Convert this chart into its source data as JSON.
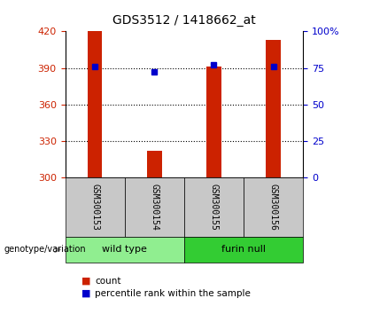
{
  "title": "GDS3512 / 1418662_at",
  "samples": [
    "GSM300153",
    "GSM300154",
    "GSM300155",
    "GSM300156"
  ],
  "groups": [
    {
      "name": "wild type",
      "indices": [
        0,
        1
      ]
    },
    {
      "name": "furin null",
      "indices": [
        2,
        3
      ]
    }
  ],
  "count_values": [
    420,
    322,
    391,
    413
  ],
  "percentile_values": [
    76,
    72,
    77,
    76
  ],
  "ymin": 300,
  "ymax": 420,
  "yticks": [
    300,
    330,
    360,
    390,
    420
  ],
  "pct_ticks": [
    0,
    25,
    50,
    75,
    100
  ],
  "bar_color": "#CC2200",
  "pct_color": "#0000CC",
  "bar_width": 0.25,
  "legend_count_label": "count",
  "legend_pct_label": "percentile rank within the sample",
  "group_label": "genotype/variation",
  "xlabel_bg": "#C8C8C8",
  "group_bg_light": "#90EE90",
  "group_bg_dark": "#33CC33",
  "title_fontsize": 10,
  "tick_fontsize": 8,
  "sample_fontsize": 7,
  "group_fontsize": 8,
  "legend_fontsize": 7.5
}
